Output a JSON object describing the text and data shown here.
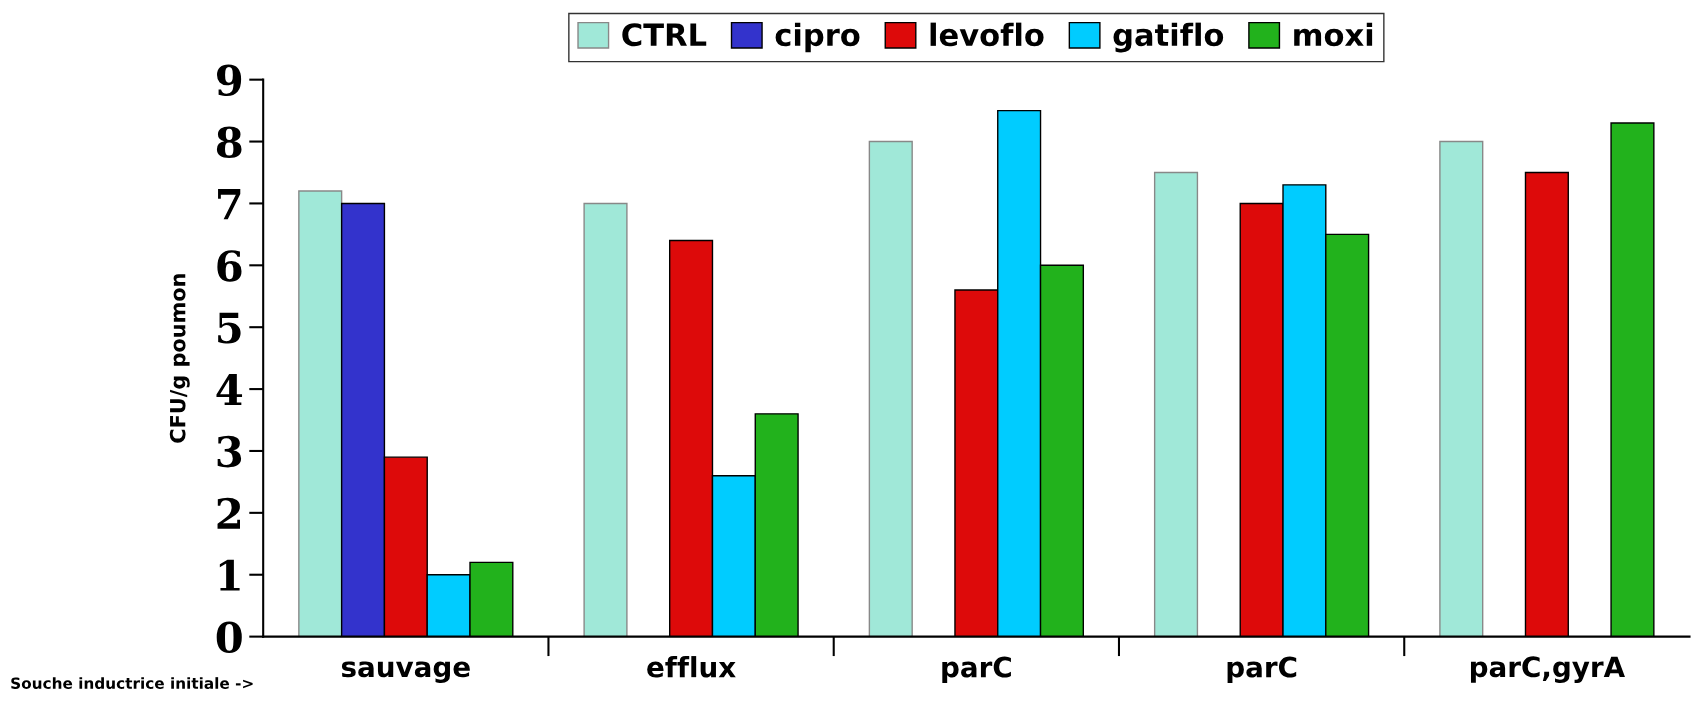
{
  "chart_data": {
    "type": "bar",
    "ylabel": "CFU/g poumon",
    "categories": [
      "sauvage",
      "efflux",
      "parC",
      "parC",
      "parC,gyrA"
    ],
    "series": [
      {
        "name": "CTRL",
        "color": "#a0e8d8",
        "values": [
          7.2,
          7.0,
          8.0,
          7.5,
          8.0
        ]
      },
      {
        "name": "cipro",
        "color": "#3333cc",
        "values": [
          7.0,
          null,
          null,
          null,
          null
        ]
      },
      {
        "name": "levoflo",
        "color": "#dd0a0a",
        "values": [
          2.9,
          6.4,
          5.6,
          7.0,
          7.5
        ]
      },
      {
        "name": "gatiflo",
        "color": "#00ccff",
        "values": [
          1.0,
          2.6,
          8.5,
          7.3,
          null
        ]
      },
      {
        "name": "moxi",
        "color": "#22b21c",
        "values": [
          1.2,
          3.6,
          6.0,
          6.5,
          8.3
        ]
      }
    ],
    "ylim": [
      0,
      9
    ],
    "yticks": [
      0,
      1,
      2,
      3,
      4,
      5,
      6,
      7,
      8,
      9
    ],
    "grid": false,
    "legend": "top",
    "annotations": [
      "Souche inductrice initiale ->"
    ]
  }
}
